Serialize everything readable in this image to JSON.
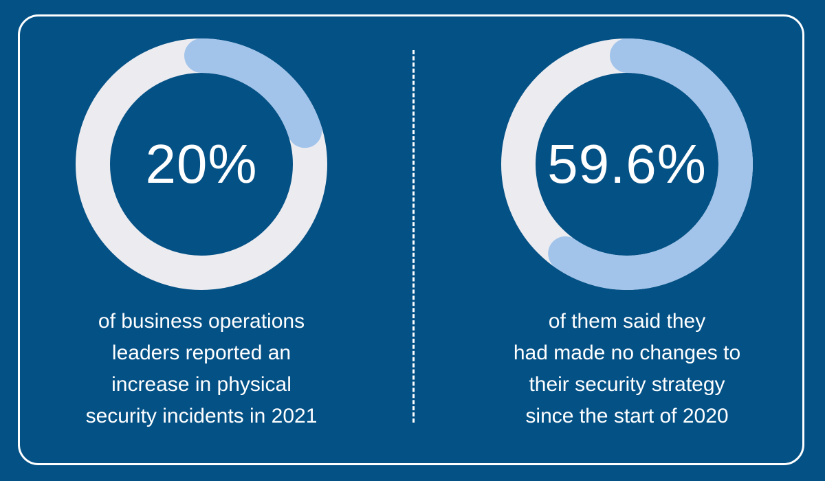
{
  "colors": {
    "background": "#045186",
    "track": "#ececf0",
    "progress": "#a2c4ea",
    "text": "#ffffff"
  },
  "chart_data": [
    {
      "type": "pie",
      "variant": "donut",
      "value": 20,
      "value_label": "20%",
      "caption_lines": [
        "of business operations",
        "leaders reported an",
        "increase in physical",
        "security incidents in 2021"
      ]
    },
    {
      "type": "pie",
      "variant": "donut",
      "value": 59.6,
      "value_label": "59.6%",
      "caption_lines": [
        "of them said they",
        "had made no changes to",
        "their security strategy",
        "since the start of 2020"
      ]
    }
  ]
}
